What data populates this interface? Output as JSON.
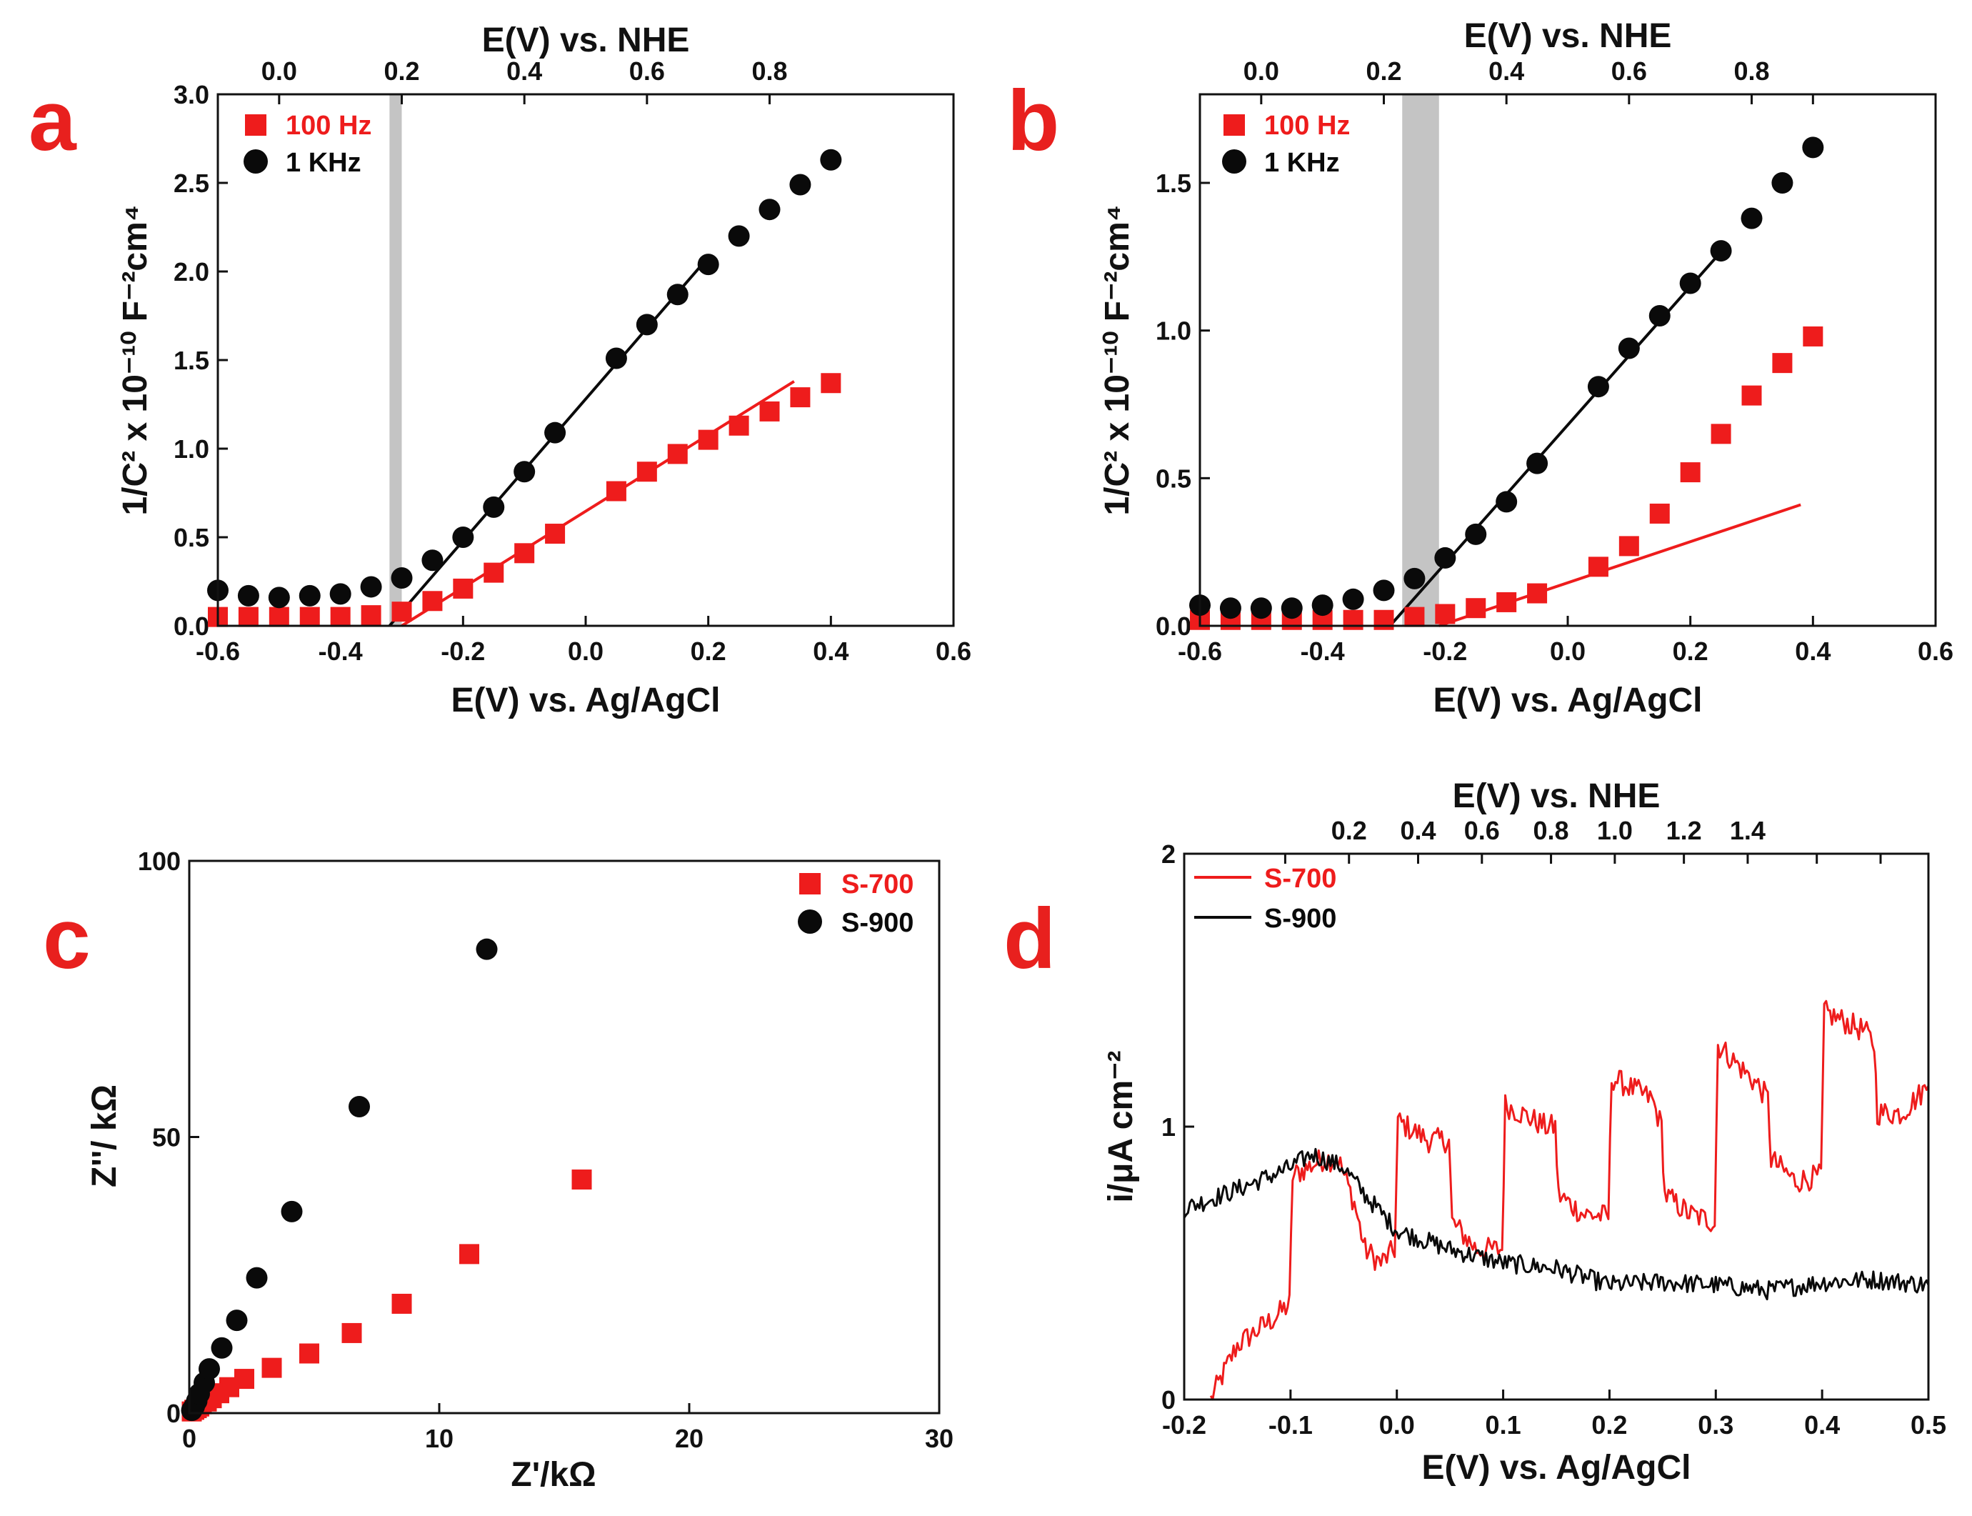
{
  "colors": {
    "red": "#ee1c1c",
    "black": "#0a0a0a",
    "band": "#c4c4c4",
    "letter": "#e8201e"
  },
  "chart_data": [
    {
      "id": "a",
      "type": "scatter",
      "panel_label": "a",
      "xlabel": "E(V) vs. Ag/AgCl",
      "ylabel": "1/C² x 10⁻¹⁰ F⁻²cm⁴",
      "top_xlabel": "E(V) vs. NHE",
      "xlim": [
        -0.6,
        0.6
      ],
      "ylim": [
        0,
        3.0
      ],
      "x_ticks": [
        -0.6,
        -0.4,
        -0.2,
        0.0,
        0.2,
        0.4,
        0.6
      ],
      "x_tick_labels": [
        "-0.6",
        "-0.4",
        "-0.2",
        "0.0",
        "0.2",
        "0.4",
        "0.6"
      ],
      "y_ticks": [
        0,
        0.5,
        1.0,
        1.5,
        2.0,
        2.5,
        3.0
      ],
      "y_tick_labels": [
        "0.0",
        "0.5",
        "1.0",
        "1.5",
        "2.0",
        "2.5",
        "3.0"
      ],
      "top_ticks": [
        -0.5,
        -0.3,
        -0.1,
        0.1,
        0.3
      ],
      "top_tick_labels": [
        "0.0",
        "0.2",
        "0.4",
        "0.6",
        "0.8"
      ],
      "band": [
        -0.32,
        -0.3
      ],
      "legend": [
        "100 Hz",
        "1 KHz"
      ],
      "series": [
        {
          "name": "100 Hz",
          "marker": "square",
          "color": "red",
          "x": [
            -0.6,
            -0.55,
            -0.5,
            -0.45,
            -0.4,
            -0.35,
            -0.3,
            -0.25,
            -0.2,
            -0.15,
            -0.1,
            -0.05,
            0.05,
            0.1,
            0.15,
            0.2,
            0.25,
            0.3,
            0.35,
            0.4
          ],
          "y": [
            0.05,
            0.05,
            0.05,
            0.05,
            0.05,
            0.06,
            0.08,
            0.14,
            0.21,
            0.3,
            0.41,
            0.52,
            0.76,
            0.87,
            0.97,
            1.05,
            1.13,
            1.21,
            1.29,
            1.37
          ]
        },
        {
          "name": "1 KHz",
          "marker": "circle",
          "color": "black",
          "x": [
            -0.6,
            -0.55,
            -0.5,
            -0.45,
            -0.4,
            -0.35,
            -0.3,
            -0.25,
            -0.2,
            -0.15,
            -0.1,
            -0.05,
            0.05,
            0.1,
            0.15,
            0.2,
            0.25,
            0.3,
            0.35,
            0.4
          ],
          "y": [
            0.2,
            0.17,
            0.16,
            0.17,
            0.18,
            0.22,
            0.27,
            0.37,
            0.5,
            0.67,
            0.87,
            1.09,
            1.51,
            1.7,
            1.87,
            2.04,
            2.2,
            2.35,
            2.49,
            2.63
          ]
        }
      ],
      "fits": [
        {
          "color": "black",
          "x": [
            -0.32,
            0.19
          ],
          "y": [
            0.0,
            2.04
          ]
        },
        {
          "color": "red",
          "x": [
            -0.3,
            0.34
          ],
          "y": [
            0.0,
            1.38
          ]
        }
      ]
    },
    {
      "id": "b",
      "type": "scatter",
      "panel_label": "b",
      "xlabel": "E(V) vs. Ag/AgCl",
      "ylabel": "1/C² x 10⁻¹⁰ F⁻²cm⁴",
      "top_xlabel": "E(V) vs. NHE",
      "xlim": [
        -0.6,
        0.6
      ],
      "ylim": [
        0,
        1.8
      ],
      "x_ticks": [
        -0.6,
        -0.4,
        -0.2,
        0.0,
        0.2,
        0.4,
        0.6
      ],
      "x_tick_labels": [
        "-0.6",
        "-0.4",
        "-0.2",
        "0.0",
        "0.2",
        "0.4",
        "0.6"
      ],
      "y_ticks": [
        0,
        0.5,
        1.0,
        1.5
      ],
      "y_tick_labels": [
        "0.0",
        "0.5",
        "1.0",
        "1.5"
      ],
      "top_ticks": [
        -0.5,
        -0.3,
        -0.1,
        0.1,
        0.3,
        0.4
      ],
      "top_tick_labels": [
        "0.0",
        "0.2",
        "0.4",
        "0.6",
        "0.8",
        ""
      ],
      "band": [
        -0.27,
        -0.21
      ],
      "legend": [
        "100 Hz",
        "1 KHz"
      ],
      "series": [
        {
          "name": "100 Hz",
          "marker": "square",
          "color": "red",
          "x": [
            -0.6,
            -0.55,
            -0.5,
            -0.45,
            -0.4,
            -0.35,
            -0.3,
            -0.25,
            -0.2,
            -0.15,
            -0.1,
            -0.05,
            0.05,
            0.1,
            0.15,
            0.2,
            0.25,
            0.3,
            0.35,
            0.4
          ],
          "y": [
            0.02,
            0.02,
            0.02,
            0.02,
            0.02,
            0.02,
            0.02,
            0.03,
            0.04,
            0.06,
            0.08,
            0.11,
            0.2,
            0.27,
            0.38,
            0.52,
            0.65,
            0.78,
            0.89,
            0.98
          ]
        },
        {
          "name": "1 KHz",
          "marker": "circle",
          "color": "black",
          "x": [
            -0.6,
            -0.55,
            -0.5,
            -0.45,
            -0.4,
            -0.35,
            -0.3,
            -0.25,
            -0.2,
            -0.15,
            -0.1,
            -0.05,
            0.05,
            0.1,
            0.15,
            0.2,
            0.25,
            0.3,
            0.35,
            0.4
          ],
          "y": [
            0.07,
            0.06,
            0.06,
            0.06,
            0.07,
            0.09,
            0.12,
            0.16,
            0.23,
            0.31,
            0.42,
            0.55,
            0.81,
            0.94,
            1.05,
            1.16,
            1.27,
            1.38,
            1.5,
            1.62
          ]
        },
        {
          "name": "100 Hz fit",
          "marker": "none",
          "color": "red",
          "x": [],
          "y": []
        }
      ],
      "fits": [
        {
          "color": "black",
          "x": [
            -0.29,
            0.26
          ],
          "y": [
            0.0,
            1.29
          ]
        },
        {
          "color": "red",
          "x": [
            -0.21,
            0.38
          ],
          "y": [
            0.0,
            0.41
          ]
        }
      ]
    },
    {
      "id": "c",
      "type": "scatter",
      "panel_label": "c",
      "xlabel": "Z'/kΩ",
      "ylabel": "Z''/ kΩ",
      "xlim": [
        0,
        30
      ],
      "ylim": [
        0,
        100
      ],
      "x_ticks": [
        0,
        10,
        20,
        30
      ],
      "x_tick_labels": [
        "0",
        "10",
        "20",
        "30"
      ],
      "y_ticks": [
        0,
        50,
        100
      ],
      "y_tick_labels": [
        "0",
        "50",
        "100"
      ],
      "legend": [
        "S-700",
        "S-900"
      ],
      "series": [
        {
          "name": "S-700",
          "marker": "square",
          "color": "red",
          "x": [
            0.1,
            0.2,
            0.3,
            0.4,
            0.5,
            0.7,
            0.9,
            1.2,
            1.6,
            2.2,
            3.3,
            4.8,
            6.5,
            8.5,
            11.2,
            15.7
          ],
          "y": [
            0.3,
            0.6,
            0.9,
            1.2,
            1.6,
            2.1,
            2.7,
            3.6,
            4.7,
            6.2,
            8.2,
            10.8,
            14.5,
            19.8,
            28.8,
            42.3
          ]
        },
        {
          "name": "S-900",
          "marker": "circle",
          "color": "black",
          "x": [
            0.1,
            0.2,
            0.3,
            0.4,
            0.6,
            0.8,
            1.3,
            1.9,
            2.7,
            4.1,
            6.8,
            11.9
          ],
          "y": [
            0.5,
            1.2,
            2.2,
            3.5,
            5.5,
            8.0,
            11.8,
            16.8,
            24.5,
            36.5,
            55.5,
            84.0
          ]
        }
      ]
    },
    {
      "id": "d",
      "type": "line",
      "panel_label": "d",
      "xlabel": "E(V) vs. Ag/AgCl",
      "ylabel": "i/μA cm⁻²",
      "top_xlabel": "E(V) vs. NHE",
      "xlim": [
        -0.2,
        0.5
      ],
      "ylim": [
        0,
        2
      ],
      "x_ticks": [
        -0.2,
        -0.1,
        0.0,
        0.1,
        0.2,
        0.3,
        0.4,
        0.5
      ],
      "x_tick_labels": [
        "-0.2",
        "-0.1",
        "0.0",
        "0.1",
        "0.2",
        "0.3",
        "0.4",
        "0.5"
      ],
      "y_ticks": [
        0,
        1,
        2
      ],
      "y_tick_labels": [
        "0",
        "1",
        "2"
      ],
      "top_ticks": [
        -0.105,
        -0.045,
        0.02,
        0.08,
        0.145,
        0.205,
        0.27,
        0.33,
        0.395,
        0.455
      ],
      "top_tick_labels": [
        "",
        "0.2",
        "0.4",
        "0.6",
        "0.8",
        "1.0",
        "1.2",
        "1.4",
        "",
        ""
      ],
      "legend": [
        "S-700",
        "S-900"
      ],
      "series": [
        {
          "name": "S-700",
          "color": "red",
          "noise": 0.045,
          "x": [
            -0.175,
            -0.15,
            -0.115,
            -0.101,
            -0.098,
            -0.07,
            -0.055,
            -0.04,
            -0.03,
            -0.015,
            -0.002,
            0.001,
            0.03,
            0.049,
            0.052,
            0.075,
            0.099,
            0.102,
            0.14,
            0.149,
            0.152,
            0.175,
            0.199,
            0.202,
            0.24,
            0.249,
            0.252,
            0.275,
            0.299,
            0.302,
            0.34,
            0.349,
            0.352,
            0.375,
            0.399,
            0.402,
            0.44,
            0.449,
            0.452,
            0.475,
            0.5
          ],
          "y": [
            0.0,
            0.2,
            0.3,
            0.35,
            0.82,
            0.88,
            0.88,
            0.72,
            0.55,
            0.5,
            0.55,
            1.02,
            0.95,
            0.95,
            0.65,
            0.55,
            0.55,
            1.08,
            1.0,
            1.0,
            0.75,
            0.68,
            0.67,
            1.18,
            1.1,
            1.0,
            0.75,
            0.68,
            0.65,
            1.3,
            1.15,
            1.1,
            0.88,
            0.8,
            0.82,
            1.42,
            1.35,
            1.3,
            1.05,
            1.05,
            1.15
          ]
        },
        {
          "name": "S-900",
          "color": "black",
          "noise": 0.035,
          "x": [
            -0.2,
            -0.15,
            -0.1,
            -0.08,
            -0.05,
            -0.03,
            0.0,
            0.05,
            0.1,
            0.15,
            0.2,
            0.25,
            0.3,
            0.35,
            0.4,
            0.45,
            0.5
          ],
          "y": [
            0.7,
            0.77,
            0.85,
            0.9,
            0.85,
            0.75,
            0.62,
            0.55,
            0.5,
            0.48,
            0.42,
            0.43,
            0.42,
            0.4,
            0.43,
            0.44,
            0.42
          ]
        }
      ]
    }
  ]
}
